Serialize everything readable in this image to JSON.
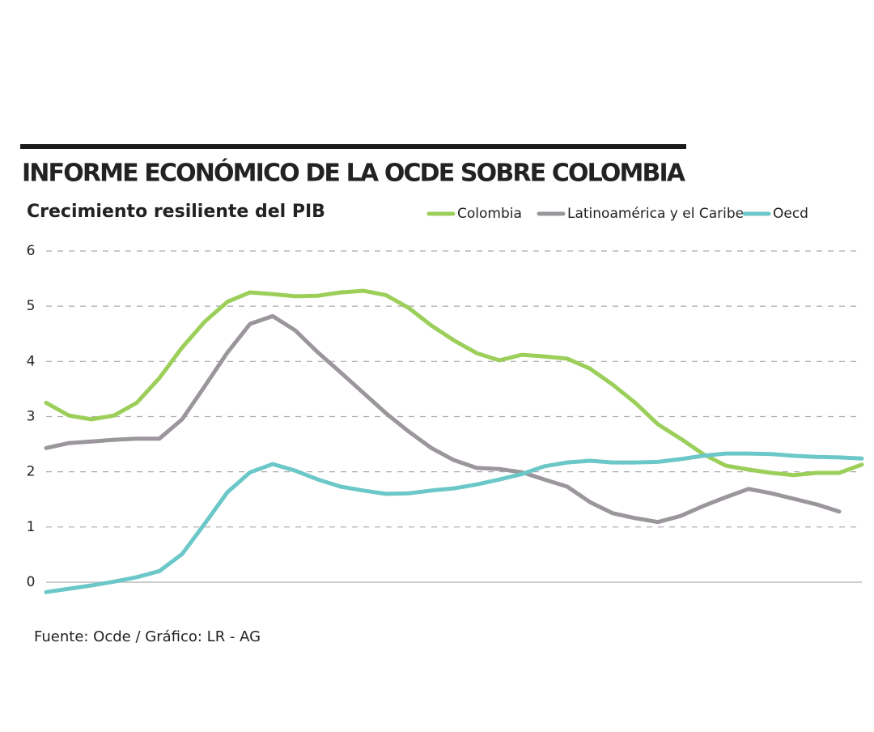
{
  "chart_data": {
    "type": "line",
    "title": "INFORME ECONÓMICO DE LA OCDE SOBRE COLOMBIA",
    "subtitle": "Crecimiento resiliente del PIB",
    "source": "Fuente: Ocde / Gráfico: LR - AG",
    "categories": [
      null,
      null,
      null,
      null,
      null,
      null,
      null,
      null,
      null,
      null,
      null,
      null,
      null,
      null,
      null,
      null,
      null,
      null,
      null,
      null,
      null,
      null,
      null,
      null,
      null,
      null,
      null,
      null,
      null,
      null,
      null,
      null,
      null,
      null,
      null,
      null,
      null
    ],
    "series": [
      {
        "name": "Colombia",
        "color": "#9ccf5a",
        "values": [
          3.25,
          3.02,
          2.95,
          3.02,
          3.25,
          3.7,
          4.25,
          4.72,
          5.08,
          5.25,
          5.22,
          5.18,
          5.19,
          5.25,
          5.28,
          5.2,
          4.97,
          4.65,
          4.38,
          4.15,
          4.02,
          4.12,
          4.09,
          4.05,
          3.87,
          3.58,
          3.25,
          2.86,
          2.6,
          2.32,
          2.11,
          2.04,
          1.98,
          1.94,
          1.98,
          1.98,
          2.13
        ]
      },
      {
        "name": "Latinoamérica y el Caribe",
        "color": "#9a969b",
        "values": [
          2.43,
          2.52,
          2.55,
          2.58,
          2.6,
          2.6,
          2.95,
          3.55,
          4.16,
          4.68,
          4.82,
          4.56,
          4.16,
          3.8,
          3.43,
          3.06,
          2.73,
          2.43,
          2.21,
          2.07,
          2.05,
          1.99,
          1.86,
          1.73,
          1.45,
          1.25,
          1.16,
          1.09,
          1.2,
          1.38,
          1.54,
          1.69,
          1.61,
          1.51,
          1.41,
          1.28,
          null
        ]
      },
      {
        "name": "Oecd",
        "color": "#6cc8c8",
        "values": [
          -0.18,
          -0.12,
          -0.06,
          0.01,
          0.09,
          0.2,
          0.51,
          1.06,
          1.63,
          1.99,
          2.14,
          2.02,
          1.86,
          1.73,
          1.66,
          1.6,
          1.61,
          1.66,
          1.7,
          1.77,
          1.86,
          1.96,
          2.1,
          2.17,
          2.2,
          2.17,
          2.17,
          2.18,
          2.23,
          2.29,
          2.33,
          2.33,
          2.32,
          2.29,
          2.27,
          2.26,
          2.24
        ]
      }
    ],
    "ylim": [
      -0.25,
      6
    ],
    "yticks": [
      0,
      1,
      2,
      3,
      4,
      5,
      6
    ],
    "grid": true
  }
}
